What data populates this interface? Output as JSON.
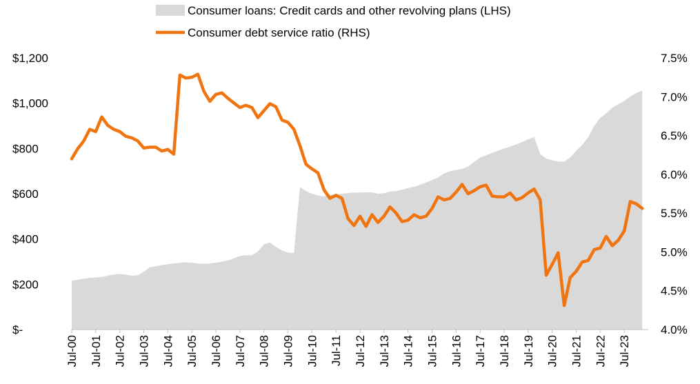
{
  "chart_data": {
    "type": "area+line",
    "legend": {
      "placement": "top-center",
      "items": [
        {
          "label": "Consumer loans: Credit cards and other revolving plans (LHS)",
          "color": "#d9d9d9",
          "kind": "area"
        },
        {
          "label": "Consumer debt service ratio (RHS)",
          "color": "#f07410",
          "kind": "line"
        }
      ]
    },
    "x_ticks": [
      "Jul-00",
      "Jul-01",
      "Jul-02",
      "Jul-03",
      "Jul-04",
      "Jul-05",
      "Jul-06",
      "Jul-07",
      "Jul-08",
      "Jul-09",
      "Jul-10",
      "Jul-11",
      "Jul-12",
      "Jul-13",
      "Jul-14",
      "Jul-15",
      "Jul-16",
      "Jul-17",
      "Jul-18",
      "Jul-19",
      "Jul-20",
      "Jul-21",
      "Jul-22",
      "Jul-23"
    ],
    "left_axis": {
      "min": 0,
      "max": 1200,
      "ticks": [
        0,
        200,
        400,
        600,
        800,
        1000,
        1200
      ],
      "tick_labels": [
        "$-",
        "$200",
        "$400",
        "$600",
        "$800",
        "$1,000",
        "$1,200"
      ]
    },
    "right_axis": {
      "min": 4.0,
      "max": 7.5,
      "ticks": [
        4.0,
        4.5,
        5.0,
        5.5,
        6.0,
        6.5,
        7.0,
        7.5
      ],
      "tick_labels": [
        "4.0%",
        "4.5%",
        "5.0%",
        "5.5%",
        "6.0%",
        "6.5%",
        "7.0%",
        "7.5%"
      ]
    },
    "x_range": [
      2000.5,
      2024.5
    ],
    "series": [
      {
        "name": "Consumer loans: Credit cards and other revolving plans (LHS)",
        "axis": "left",
        "points": [
          [
            2000.5,
            215
          ],
          [
            2000.75,
            220
          ],
          [
            2001.0,
            225
          ],
          [
            2001.25,
            228
          ],
          [
            2001.5,
            230
          ],
          [
            2001.75,
            232
          ],
          [
            2002.0,
            238
          ],
          [
            2002.25,
            243
          ],
          [
            2002.5,
            246
          ],
          [
            2002.75,
            242
          ],
          [
            2003.0,
            238
          ],
          [
            2003.25,
            240
          ],
          [
            2003.5,
            255
          ],
          [
            2003.75,
            275
          ],
          [
            2004.0,
            280
          ],
          [
            2004.25,
            285
          ],
          [
            2004.5,
            288
          ],
          [
            2004.75,
            292
          ],
          [
            2005.0,
            295
          ],
          [
            2005.25,
            297
          ],
          [
            2005.5,
            295
          ],
          [
            2005.75,
            292
          ],
          [
            2006.0,
            290
          ],
          [
            2006.25,
            292
          ],
          [
            2006.5,
            295
          ],
          [
            2006.75,
            300
          ],
          [
            2007.0,
            305
          ],
          [
            2007.25,
            315
          ],
          [
            2007.5,
            325
          ],
          [
            2007.75,
            328
          ],
          [
            2008.0,
            328
          ],
          [
            2008.25,
            345
          ],
          [
            2008.5,
            375
          ],
          [
            2008.75,
            385
          ],
          [
            2009.0,
            365
          ],
          [
            2009.25,
            350
          ],
          [
            2009.5,
            340
          ],
          [
            2009.75,
            338
          ],
          [
            2010.0,
            630
          ],
          [
            2010.25,
            612
          ],
          [
            2010.5,
            600
          ],
          [
            2010.75,
            592
          ],
          [
            2011.0,
            588
          ],
          [
            2011.25,
            595
          ],
          [
            2011.5,
            598
          ],
          [
            2011.75,
            600
          ],
          [
            2012.0,
            603
          ],
          [
            2012.25,
            605
          ],
          [
            2012.5,
            605
          ],
          [
            2012.75,
            606
          ],
          [
            2013.0,
            606
          ],
          [
            2013.25,
            600
          ],
          [
            2013.5,
            602
          ],
          [
            2013.75,
            610
          ],
          [
            2014.0,
            612
          ],
          [
            2014.25,
            618
          ],
          [
            2014.5,
            625
          ],
          [
            2014.75,
            630
          ],
          [
            2015.0,
            640
          ],
          [
            2015.25,
            650
          ],
          [
            2015.5,
            660
          ],
          [
            2015.75,
            672
          ],
          [
            2016.0,
            690
          ],
          [
            2016.25,
            700
          ],
          [
            2016.5,
            705
          ],
          [
            2016.75,
            710
          ],
          [
            2017.0,
            720
          ],
          [
            2017.25,
            740
          ],
          [
            2017.5,
            760
          ],
          [
            2017.75,
            770
          ],
          [
            2018.0,
            780
          ],
          [
            2018.25,
            790
          ],
          [
            2018.5,
            800
          ],
          [
            2018.75,
            808
          ],
          [
            2019.0,
            818
          ],
          [
            2019.25,
            828
          ],
          [
            2019.5,
            840
          ],
          [
            2019.75,
            850
          ],
          [
            2020.0,
            775
          ],
          [
            2020.25,
            755
          ],
          [
            2020.5,
            748
          ],
          [
            2020.75,
            742
          ],
          [
            2021.0,
            742
          ],
          [
            2021.25,
            760
          ],
          [
            2021.5,
            790
          ],
          [
            2021.75,
            815
          ],
          [
            2022.0,
            850
          ],
          [
            2022.25,
            900
          ],
          [
            2022.5,
            935
          ],
          [
            2022.75,
            955
          ],
          [
            2023.0,
            980
          ],
          [
            2023.25,
            995
          ],
          [
            2023.5,
            1010
          ],
          [
            2023.75,
            1030
          ],
          [
            2024.0,
            1045
          ],
          [
            2024.25,
            1055
          ]
        ]
      },
      {
        "name": "Consumer debt service ratio (RHS)",
        "axis": "right",
        "points": [
          [
            2000.5,
            6.2
          ],
          [
            2000.75,
            6.33
          ],
          [
            2001.0,
            6.43
          ],
          [
            2001.25,
            6.58
          ],
          [
            2001.5,
            6.55
          ],
          [
            2001.75,
            6.74
          ],
          [
            2002.0,
            6.63
          ],
          [
            2002.25,
            6.58
          ],
          [
            2002.5,
            6.55
          ],
          [
            2002.75,
            6.49
          ],
          [
            2003.0,
            6.47
          ],
          [
            2003.25,
            6.43
          ],
          [
            2003.5,
            6.34
          ],
          [
            2003.75,
            6.35
          ],
          [
            2004.0,
            6.35
          ],
          [
            2004.25,
            6.3
          ],
          [
            2004.5,
            6.32
          ],
          [
            2004.75,
            6.26
          ],
          [
            2005.0,
            7.28
          ],
          [
            2005.25,
            7.24
          ],
          [
            2005.5,
            7.25
          ],
          [
            2005.75,
            7.29
          ],
          [
            2006.0,
            7.07
          ],
          [
            2006.25,
            6.94
          ],
          [
            2006.5,
            7.03
          ],
          [
            2006.75,
            7.05
          ],
          [
            2007.0,
            6.98
          ],
          [
            2007.25,
            6.92
          ],
          [
            2007.5,
            6.86
          ],
          [
            2007.75,
            6.89
          ],
          [
            2008.0,
            6.86
          ],
          [
            2008.25,
            6.73
          ],
          [
            2008.5,
            6.82
          ],
          [
            2008.75,
            6.91
          ],
          [
            2009.0,
            6.87
          ],
          [
            2009.25,
            6.7
          ],
          [
            2009.5,
            6.67
          ],
          [
            2009.75,
            6.58
          ],
          [
            2010.0,
            6.37
          ],
          [
            2010.25,
            6.13
          ],
          [
            2010.5,
            6.07
          ],
          [
            2010.75,
            6.02
          ],
          [
            2011.0,
            5.8
          ],
          [
            2011.25,
            5.69
          ],
          [
            2011.5,
            5.73
          ],
          [
            2011.75,
            5.69
          ],
          [
            2012.0,
            5.43
          ],
          [
            2012.25,
            5.34
          ],
          [
            2012.5,
            5.46
          ],
          [
            2012.75,
            5.33
          ],
          [
            2013.0,
            5.48
          ],
          [
            2013.25,
            5.38
          ],
          [
            2013.5,
            5.46
          ],
          [
            2013.75,
            5.58
          ],
          [
            2014.0,
            5.5
          ],
          [
            2014.25,
            5.39
          ],
          [
            2014.5,
            5.41
          ],
          [
            2014.75,
            5.48
          ],
          [
            2015.0,
            5.44
          ],
          [
            2015.25,
            5.46
          ],
          [
            2015.5,
            5.56
          ],
          [
            2015.75,
            5.71
          ],
          [
            2016.0,
            5.67
          ],
          [
            2016.25,
            5.69
          ],
          [
            2016.5,
            5.77
          ],
          [
            2016.75,
            5.87
          ],
          [
            2017.0,
            5.75
          ],
          [
            2017.25,
            5.79
          ],
          [
            2017.5,
            5.84
          ],
          [
            2017.75,
            5.86
          ],
          [
            2018.0,
            5.72
          ],
          [
            2018.25,
            5.71
          ],
          [
            2018.5,
            5.71
          ],
          [
            2018.75,
            5.76
          ],
          [
            2019.0,
            5.67
          ],
          [
            2019.25,
            5.7
          ],
          [
            2019.5,
            5.76
          ],
          [
            2019.75,
            5.81
          ],
          [
            2020.0,
            5.67
          ],
          [
            2020.25,
            4.7
          ],
          [
            2020.5,
            4.84
          ],
          [
            2020.75,
            4.99
          ],
          [
            2021.0,
            4.31
          ],
          [
            2021.25,
            4.67
          ],
          [
            2021.5,
            4.75
          ],
          [
            2021.75,
            4.87
          ],
          [
            2022.0,
            4.89
          ],
          [
            2022.25,
            5.03
          ],
          [
            2022.5,
            5.05
          ],
          [
            2022.75,
            5.2
          ],
          [
            2023.0,
            5.08
          ],
          [
            2023.25,
            5.15
          ],
          [
            2023.5,
            5.27
          ],
          [
            2023.75,
            5.65
          ],
          [
            2024.0,
            5.62
          ],
          [
            2024.25,
            5.56
          ]
        ]
      }
    ]
  }
}
